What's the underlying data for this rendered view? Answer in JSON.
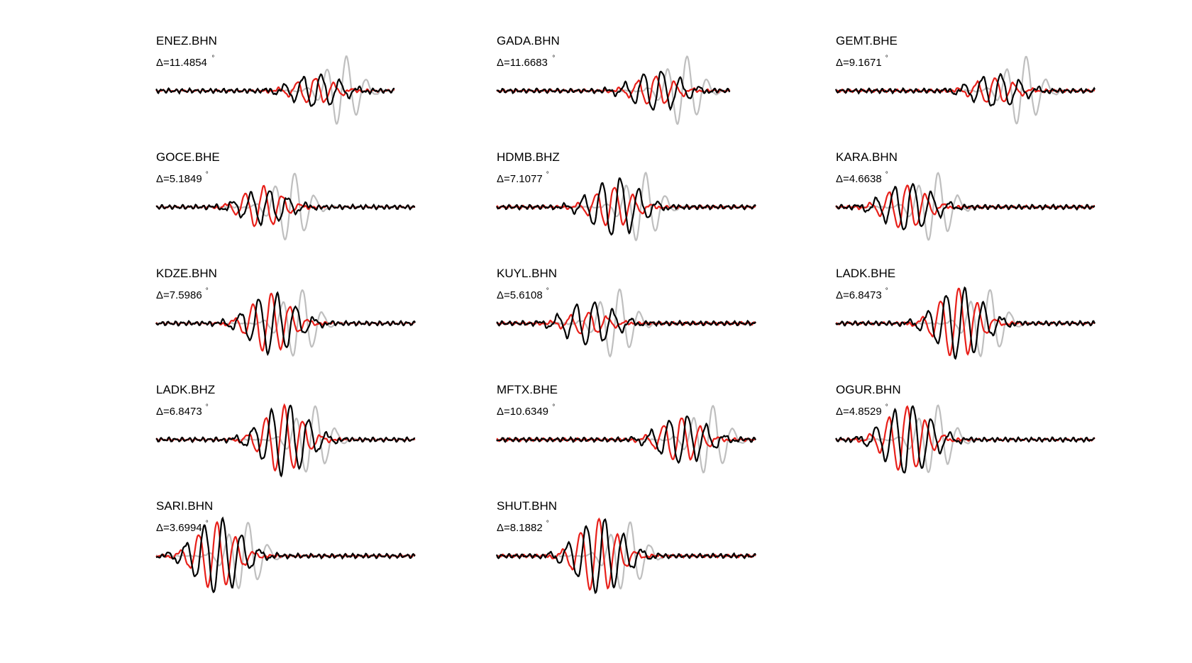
{
  "colors": {
    "observed": "#000000",
    "synthetic": "#e8201a",
    "reference": "#bfbfbf"
  },
  "chart_data": {
    "type": "line",
    "legend": "none",
    "grid": false,
    "panels": [
      {
        "station": "ENEZ.BHN",
        "delta": "Δ=11.4854",
        "center": 0.62,
        "ref_amp": 1.0,
        "obs_amp": 0.45,
        "syn_amp": 0.35
      },
      {
        "station": "GADA.BHN",
        "delta": "Δ=11.6683",
        "center": 0.62,
        "ref_amp": 1.0,
        "obs_amp": 0.55,
        "syn_amp": 0.4
      },
      {
        "station": "GEMT.BHE",
        "delta": "Δ=9.1671",
        "center": 0.62,
        "ref_amp": 1.0,
        "obs_amp": 0.45,
        "syn_amp": 0.35
      },
      {
        "station": "GOCE.BHE",
        "delta": "Δ=5.1849",
        "center": 0.42,
        "ref_amp": 1.0,
        "obs_amp": 0.45,
        "syn_amp": 0.55
      },
      {
        "station": "HDMB.BHZ",
        "delta": "Δ=7.1077",
        "center": 0.46,
        "ref_amp": 1.0,
        "obs_amp": 0.8,
        "syn_amp": 0.55
      },
      {
        "station": "KARA.BHN",
        "delta": "Δ=4.6638",
        "center": 0.28,
        "ref_amp": 1.0,
        "obs_amp": 0.65,
        "syn_amp": 0.6
      },
      {
        "station": "KDZE.BHN",
        "delta": "Δ=7.5986",
        "center": 0.45,
        "ref_amp": 1.0,
        "obs_amp": 0.8,
        "syn_amp": 0.8
      },
      {
        "station": "KUYL.BHN",
        "delta": "Δ=5.6108",
        "center": 0.36,
        "ref_amp": 1.0,
        "obs_amp": 0.6,
        "syn_amp": 0.3
      },
      {
        "station": "LADK.BHE",
        "delta": "Δ=6.8473",
        "center": 0.48,
        "ref_amp": 1.0,
        "obs_amp": 0.95,
        "syn_amp": 0.95
      },
      {
        "station": "LADK.BHZ",
        "delta": "Δ=6.8473",
        "center": 0.5,
        "ref_amp": 1.0,
        "obs_amp": 0.95,
        "syn_amp": 0.9
      },
      {
        "station": "MFTX.BHE",
        "delta": "Δ=10.6349",
        "center": 0.72,
        "ref_amp": 1.0,
        "obs_amp": 0.65,
        "syn_amp": 0.6
      },
      {
        "station": "OGUR.BHN",
        "delta": "Δ=4.8529",
        "center": 0.28,
        "ref_amp": 1.0,
        "obs_amp": 0.95,
        "syn_amp": 0.9
      },
      {
        "station": "SARI.BHN",
        "delta": "Δ=3.6994",
        "center": 0.24,
        "ref_amp": 1.0,
        "obs_amp": 1.0,
        "syn_amp": 0.9
      },
      {
        "station": "SHUT.BHN",
        "delta": "Δ=8.1882",
        "center": 0.4,
        "ref_amp": 1.0,
        "obs_amp": 1.0,
        "syn_amp": 1.0
      }
    ]
  }
}
